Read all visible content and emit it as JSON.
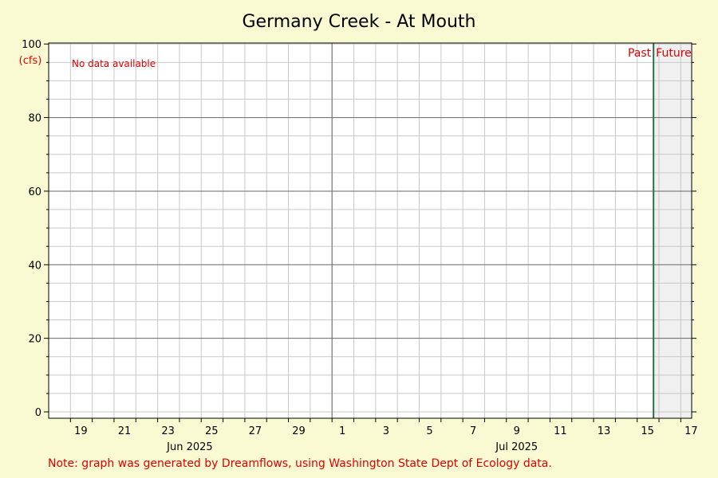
{
  "chart_data": {
    "type": "line",
    "title": "Germany Creek - At Mouth",
    "ylabel": "(cfs)",
    "ylim": [
      0,
      100
    ],
    "yticks": [
      0,
      20,
      40,
      60,
      80,
      100
    ],
    "x_start": "2025-06-18",
    "x_end": "2025-07-17",
    "x_tick_labels": [
      {
        "date": "2025-06-19",
        "label": "19"
      },
      {
        "date": "2025-06-21",
        "label": "21"
      },
      {
        "date": "2025-06-23",
        "label": "23"
      },
      {
        "date": "2025-06-25",
        "label": "25"
      },
      {
        "date": "2025-06-27",
        "label": "27"
      },
      {
        "date": "2025-06-29",
        "label": "29"
      },
      {
        "date": "2025-07-01",
        "label": "1"
      },
      {
        "date": "2025-07-03",
        "label": "3"
      },
      {
        "date": "2025-07-05",
        "label": "5"
      },
      {
        "date": "2025-07-07",
        "label": "7"
      },
      {
        "date": "2025-07-09",
        "label": "9"
      },
      {
        "date": "2025-07-11",
        "label": "11"
      },
      {
        "date": "2025-07-13",
        "label": "13"
      },
      {
        "date": "2025-07-15",
        "label": "15"
      },
      {
        "date": "2025-07-17",
        "label": "17"
      }
    ],
    "month_labels": [
      {
        "date": "2025-06-24",
        "label": "Jun 2025"
      },
      {
        "date": "2025-07-09",
        "label": "Jul 2025"
      }
    ],
    "month_boundary": "2025-07-01",
    "now": "2025-07-15T18:00",
    "series": [],
    "grid": true,
    "no_data_text": "No data available",
    "past_label": "Past",
    "future_label": "Future"
  },
  "footer_note": "Note: graph was generated by Dreamflows, using Washington State Dept of Ecology data.",
  "colors": {
    "background": "#fafad2",
    "plot": "#ffffff",
    "future_shade": "#f0f0f0",
    "grid_minor": "#c8c8c8",
    "grid_major": "#666666",
    "now_line": "#2e6b4f",
    "annotation": "#e00000"
  }
}
